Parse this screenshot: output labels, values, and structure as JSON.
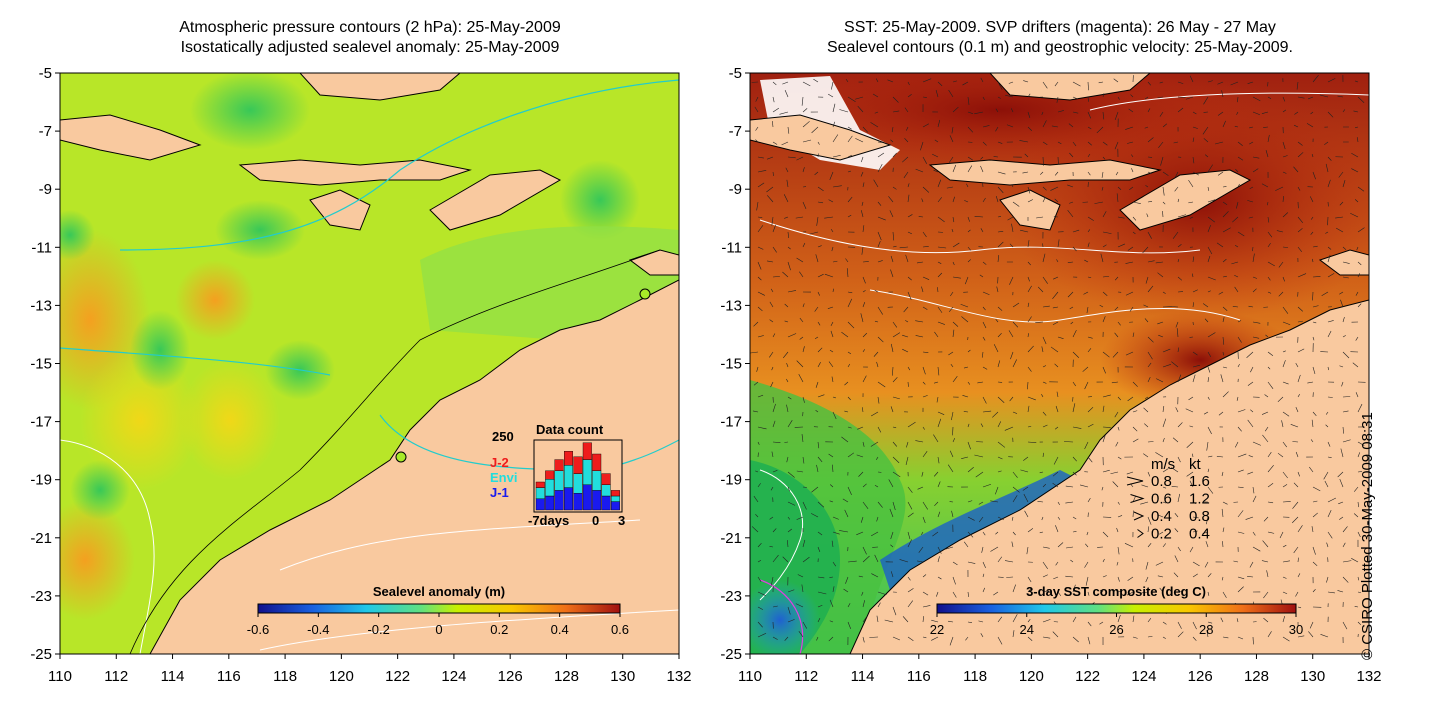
{
  "left_panel": {
    "title_line1": "Atmospheric pressure contours (2 hPa): 25-May-2009",
    "title_line2": "Isostatically adjusted sealevel anomaly: 25-May-2009",
    "x_ticks": [
      "110",
      "112",
      "114",
      "116",
      "118",
      "120",
      "122",
      "124",
      "126",
      "128",
      "130",
      "132"
    ],
    "y_ticks": [
      "-5",
      "-7",
      "-9",
      "-11",
      "-13",
      "-15",
      "-17",
      "-19",
      "-21",
      "-23",
      "-25"
    ],
    "colorbar": {
      "label": "Sealevel anomaly (m)",
      "ticks": [
        "-0.6",
        "-0.4",
        "-0.2",
        "0",
        "0.2",
        "0.4",
        "0.6"
      ],
      "colors": [
        "#1a1aa0",
        "#2a6ae0",
        "#22c8e8",
        "#60e890",
        "#c8f000",
        "#f8c800",
        "#f07818",
        "#b01010"
      ]
    },
    "inset": {
      "title": "Data count",
      "y_max_label": "250",
      "x_labels": [
        "-7days",
        "0",
        "3"
      ],
      "legend": [
        {
          "label": "J-2",
          "color": "#ee1c1c"
        },
        {
          "label": "Envi",
          "color": "#22dddd"
        },
        {
          "label": "J-1",
          "color": "#1a1aee"
        }
      ],
      "bars": [
        {
          "j1": 40,
          "envi": 40,
          "j2": 20
        },
        {
          "j1": 50,
          "envi": 60,
          "j2": 30
        },
        {
          "j1": 70,
          "envi": 70,
          "j2": 40
        },
        {
          "j1": 80,
          "envi": 80,
          "j2": 50
        },
        {
          "j1": 60,
          "envi": 70,
          "j2": 60
        },
        {
          "j1": 90,
          "envi": 90,
          "j2": 60
        },
        {
          "j1": 70,
          "envi": 70,
          "j2": 60
        },
        {
          "j1": 50,
          "envi": 40,
          "j2": 40
        },
        {
          "j1": 30,
          "envi": 20,
          "j2": 20
        }
      ]
    }
  },
  "right_panel": {
    "title_line1": "SST: 25-May-2009. SVP drifters (magenta): 26 May - 27 May",
    "title_line2": "Sealevel contours (0.1 m) and geostrophic velocity: 25-May-2009.",
    "x_ticks": [
      "110",
      "112",
      "114",
      "116",
      "118",
      "120",
      "122",
      "124",
      "126",
      "128",
      "130",
      "132"
    ],
    "y_ticks": [
      "-5",
      "-7",
      "-9",
      "-11",
      "-13",
      "-15",
      "-17",
      "-19",
      "-21",
      "-23",
      "-25"
    ],
    "colorbar": {
      "label": "3-day SST composite (deg C)",
      "ticks": [
        "22",
        "24",
        "26",
        "28",
        "30"
      ],
      "colors": [
        "#10108c",
        "#1464d8",
        "#18c8e8",
        "#28c860",
        "#a0e028",
        "#f0c818",
        "#e06818",
        "#a01010"
      ]
    },
    "velocity_legend": {
      "header_ms": "m/s",
      "header_kt": "kt",
      "rows": [
        {
          "ms": "0.8",
          "kt": "1.6"
        },
        {
          "ms": "0.6",
          "kt": "1.2"
        },
        {
          "ms": "0.4",
          "kt": "0.8"
        },
        {
          "ms": "0.2",
          "kt": "0.4"
        }
      ]
    }
  },
  "copyright": "© CSIRO Plotted 30-May-2009 08:31",
  "colors": {
    "land": "#f9c99f",
    "ocean_green": "#a8ea28",
    "ocean_warm": "#c85018"
  }
}
